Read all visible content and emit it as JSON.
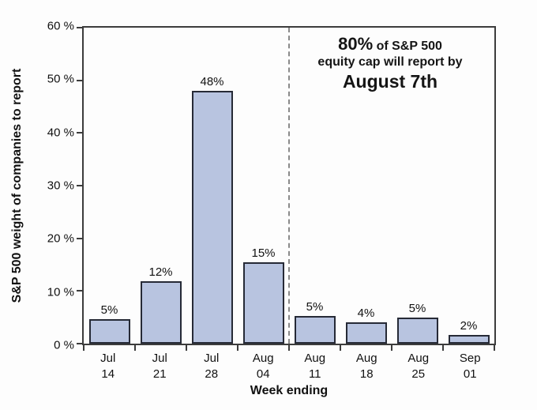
{
  "chart_data": {
    "type": "bar",
    "title": "",
    "xlabel": "Week ending",
    "ylabel": "S&P 500 weight of companies to report",
    "ylim": [
      0,
      60
    ],
    "grid": false,
    "legend_position": "none",
    "categories": [
      "Jul 14",
      "Jul 21",
      "Jul 28",
      "Aug 04",
      "Aug 11",
      "Aug 18",
      "Aug 25",
      "Sep 01"
    ],
    "category_lines": [
      [
        "Jul",
        "14"
      ],
      [
        "Jul",
        "21"
      ],
      [
        "Jul",
        "28"
      ],
      [
        "Aug",
        "04"
      ],
      [
        "Aug",
        "11"
      ],
      [
        "Aug",
        "18"
      ],
      [
        "Aug",
        "25"
      ],
      [
        "Sep",
        "01"
      ]
    ],
    "values": [
      5,
      12,
      48,
      15,
      5,
      4,
      5,
      2
    ],
    "bar_labels": [
      "5%",
      "12%",
      "48%",
      "15%",
      "5%",
      "4%",
      "5%",
      "2%"
    ],
    "bar_heights_pct": [
      4.7,
      11.8,
      48,
      15.5,
      5.3,
      4.1,
      5.0,
      1.6
    ],
    "yticks": [
      {
        "label": "60 %",
        "value": 60
      },
      {
        "label": "50 %",
        "value": 50
      },
      {
        "label": "40 %",
        "value": 40
      },
      {
        "label": "30 %",
        "value": 30
      },
      {
        "label": "20 %",
        "value": 20
      },
      {
        "label": "10 %",
        "value": 10
      },
      {
        "label": "0 %",
        "value": 0
      }
    ],
    "divider": {
      "style": "dashed",
      "between": [
        "Aug 04",
        "Aug 11"
      ]
    },
    "annotation": {
      "big_lead": "80%",
      "lead_rest": " of S&P 500",
      "line2": "equity cap will report by",
      "line3": "August 7th"
    },
    "colors": {
      "bar_fill": "#b8c4e0",
      "bar_border": "#262a36",
      "axis": "#3c3c3c",
      "divider": "#8a8a8a",
      "text": "#111111",
      "background": "#fdfdfd"
    }
  }
}
